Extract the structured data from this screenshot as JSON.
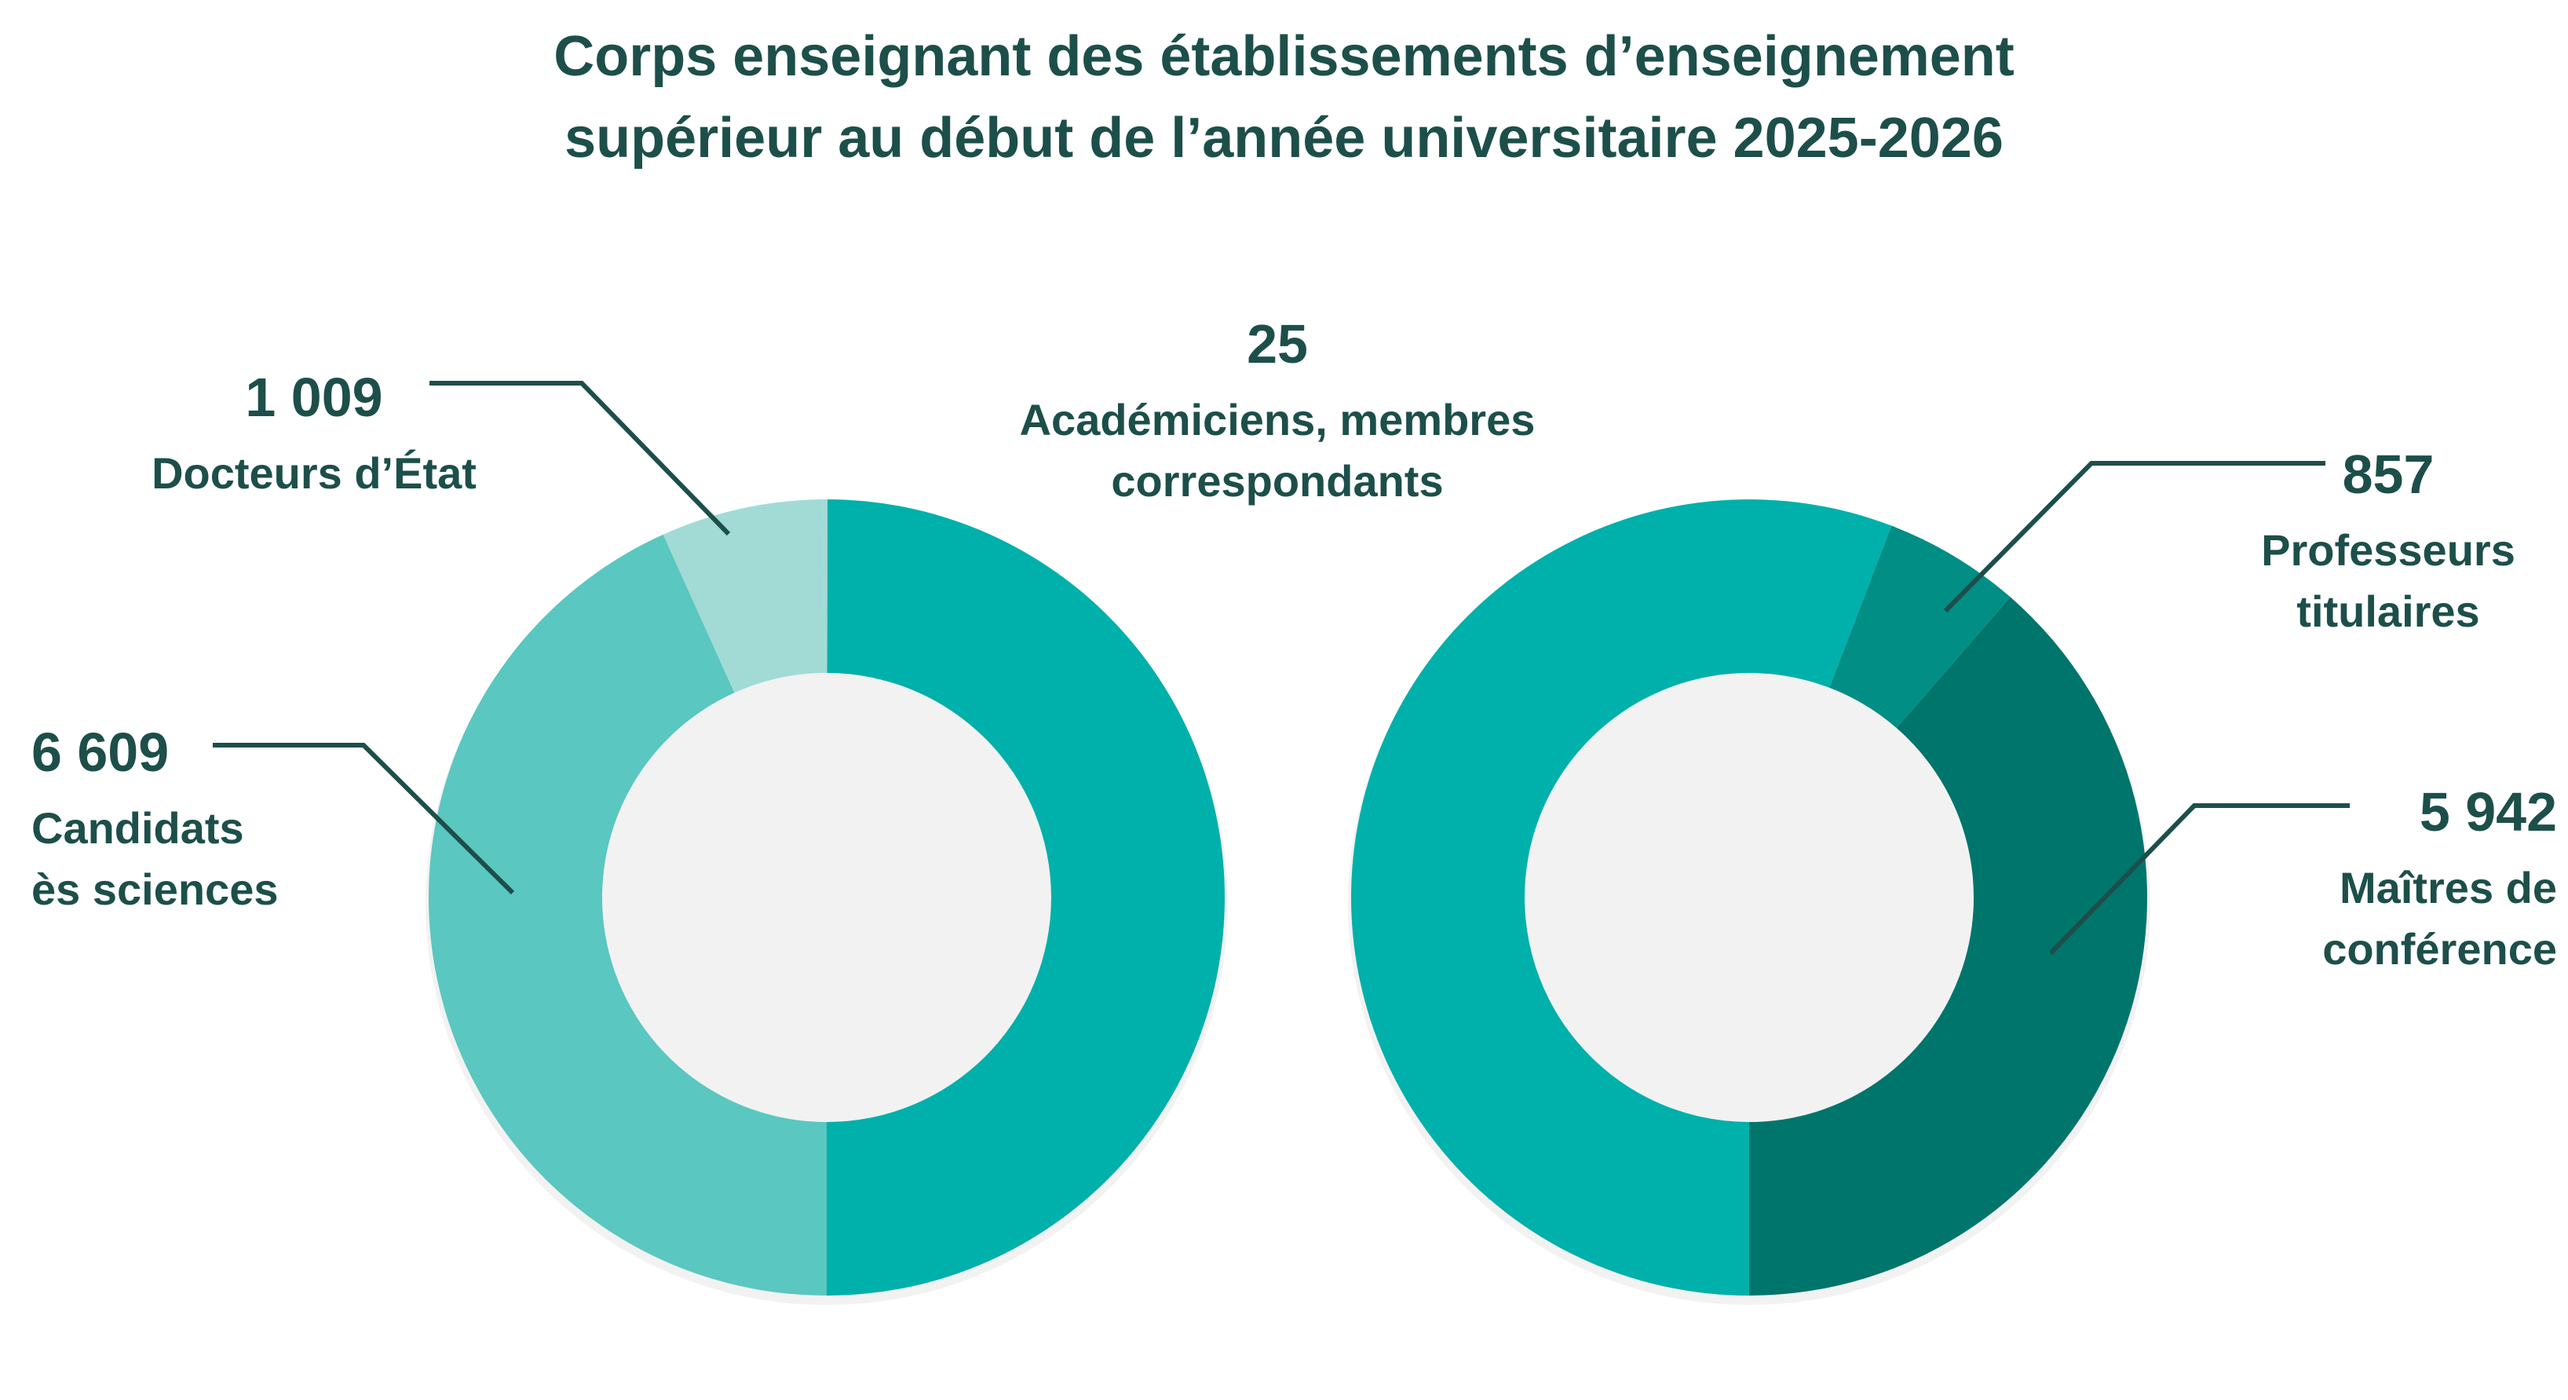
{
  "chart_data": [
    {
      "type": "donut",
      "title": "Corps enseignant des établissements d’enseignement\nsupérieur au début de l’année universitaire 2025-2026",
      "categories": [
        null,
        "Candidats\nès sciences",
        "Docteurs d’État",
        "Académiciens, membres\ncorrespondants"
      ],
      "values": [
        7634,
        6609,
        1009,
        25
      ],
      "value_labels": [
        null,
        "6 609",
        "1 009",
        "25"
      ],
      "colors": [
        "#00b0aa",
        "#5ac7c0",
        "#a2dbd6",
        "#a2dbd6"
      ]
    },
    {
      "type": "donut",
      "categories": [
        "Maîtres de\nconférence",
        null,
        "Professeurs\ntitulaires"
      ],
      "values": [
        5942,
        8591,
        857
      ],
      "value_labels": [
        "5 942",
        null,
        null
      ],
      "colors": [
        "#00756b",
        "#00b0aa",
        "#008e85"
      ]
    }
  ]
}
